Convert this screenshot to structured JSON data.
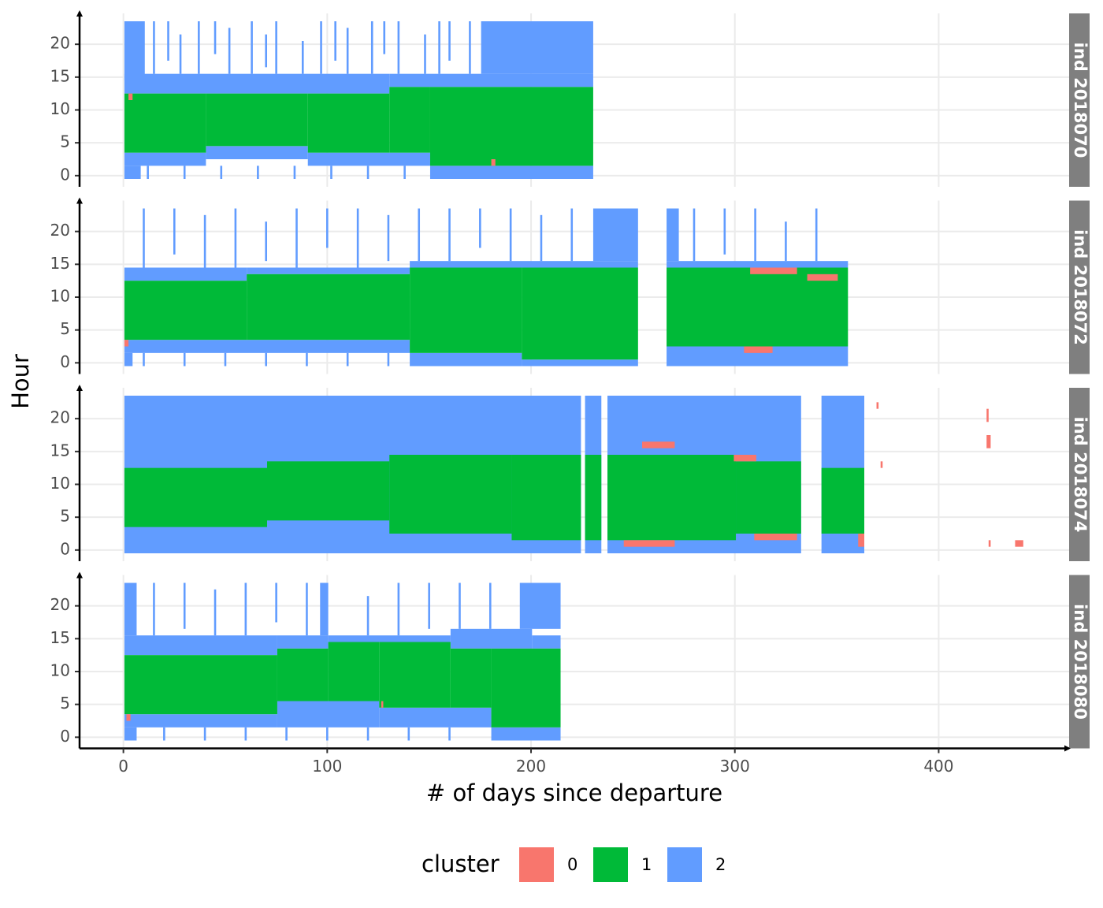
{
  "chart_data": {
    "type": "tile",
    "x_label": "# of days since departure",
    "y_label": "Hour",
    "xlim": [
      -21.5,
      464
    ],
    "xticks": [
      0,
      100,
      200,
      300,
      400
    ],
    "ylim": [
      -1.7,
      24.7
    ],
    "yticks": [
      0,
      5,
      10,
      15,
      20
    ],
    "grid": true,
    "legend": {
      "title": "cluster",
      "position": "bottom"
    },
    "clusters": [
      {
        "name": "0",
        "color": "#F8766D"
      },
      {
        "name": "1",
        "color": "#00BA38"
      },
      {
        "name": "2",
        "color": "#619CFF"
      }
    ],
    "facets": [
      {
        "label": "ind 2018070",
        "tiles": [
          [
            0.5,
            10.5,
            14.5,
            23.5,
            2
          ],
          [
            0.5,
            130.5,
            12.5,
            15.5,
            2
          ],
          [
            130.5,
            230.5,
            13.5,
            15.5,
            2
          ],
          [
            175.5,
            230.5,
            15.5,
            23.5,
            2
          ],
          [
            0.5,
            40.5,
            1.5,
            3.5,
            2
          ],
          [
            40.5,
            90.5,
            2.5,
            4.5,
            2
          ],
          [
            90.5,
            150.5,
            1.5,
            3.5,
            2
          ],
          [
            150.5,
            230.5,
            -0.5,
            1.5,
            2
          ],
          [
            0.5,
            8.5,
            -0.5,
            1.5,
            2
          ],
          [
            14.5,
            15.5,
            15.5,
            23.5,
            2
          ],
          [
            21.5,
            22.5,
            17.5,
            23.5,
            2
          ],
          [
            27.5,
            28.5,
            15.5,
            21.5,
            2
          ],
          [
            36.5,
            37.5,
            15.5,
            23.5,
            2
          ],
          [
            44.5,
            45.5,
            18.5,
            23.5,
            2
          ],
          [
            51.5,
            52.5,
            15.5,
            22.5,
            2
          ],
          [
            62.5,
            63.5,
            15.5,
            23.5,
            2
          ],
          [
            69.5,
            70.5,
            16.5,
            21.5,
            2
          ],
          [
            74.5,
            75.5,
            15.5,
            23.5,
            2
          ],
          [
            87.5,
            88.5,
            15.5,
            20.5,
            2
          ],
          [
            96.5,
            97.5,
            15.5,
            23.5,
            2
          ],
          [
            103.5,
            104.5,
            17.5,
            23.5,
            2
          ],
          [
            109.5,
            110.5,
            15.5,
            22.5,
            2
          ],
          [
            121.5,
            122.5,
            15.5,
            23.5,
            2
          ],
          [
            127.5,
            128.5,
            18.5,
            23.5,
            2
          ],
          [
            134.5,
            135.5,
            15.5,
            23.5,
            2
          ],
          [
            147.5,
            148.5,
            15.5,
            21.5,
            2
          ],
          [
            154.5,
            155.5,
            15.5,
            23.5,
            2
          ],
          [
            159.5,
            160.5,
            17.5,
            23.5,
            2
          ],
          [
            169.5,
            170.5,
            15.5,
            23.5,
            2
          ],
          [
            11.5,
            12.5,
            -0.5,
            1.5,
            2
          ],
          [
            29.5,
            30.5,
            -0.5,
            1.5,
            2
          ],
          [
            47.5,
            48.5,
            -0.5,
            1.5,
            2
          ],
          [
            65.5,
            66.5,
            -0.5,
            1.5,
            2
          ],
          [
            83.5,
            84.5,
            -0.5,
            1.5,
            2
          ],
          [
            101.5,
            102.5,
            -0.5,
            1.5,
            2
          ],
          [
            119.5,
            120.5,
            -0.5,
            1.5,
            2
          ],
          [
            137.5,
            138.5,
            -0.5,
            1.5,
            2
          ],
          [
            0.5,
            40.5,
            3.5,
            12.5,
            1
          ],
          [
            40.5,
            90.5,
            4.5,
            12.5,
            1
          ],
          [
            90.5,
            130.5,
            3.5,
            12.5,
            1
          ],
          [
            130.5,
            150.5,
            3.5,
            13.5,
            1
          ],
          [
            150.5,
            230.5,
            1.5,
            13.5,
            1
          ],
          [
            2.5,
            4.5,
            11.5,
            12.5,
            0
          ],
          [
            180.5,
            182.5,
            1.5,
            2.5,
            0
          ]
        ]
      },
      {
        "label": "ind 2018072",
        "tiles": [
          [
            0.5,
            60.5,
            12.5,
            14.5,
            2
          ],
          [
            60.5,
            140.5,
            13.5,
            14.5,
            2
          ],
          [
            140.5,
            252.5,
            14.5,
            15.5,
            2
          ],
          [
            266.5,
            355.5,
            14.5,
            15.5,
            2
          ],
          [
            230.5,
            252.5,
            15.5,
            23.5,
            2
          ],
          [
            266.5,
            272.5,
            15.5,
            23.5,
            2
          ],
          [
            0.5,
            140.5,
            1.5,
            3.5,
            2
          ],
          [
            140.5,
            195.5,
            -0.5,
            1.5,
            2
          ],
          [
            195.5,
            252.5,
            -0.5,
            0.5,
            2
          ],
          [
            266.5,
            355.5,
            -0.5,
            2.5,
            2
          ],
          [
            0.5,
            4.5,
            -0.5,
            1.5,
            2
          ],
          [
            9.5,
            10.5,
            14.5,
            23.5,
            2
          ],
          [
            24.5,
            25.5,
            16.5,
            23.5,
            2
          ],
          [
            39.5,
            40.5,
            14.5,
            22.5,
            2
          ],
          [
            54.5,
            55.5,
            14.5,
            23.5,
            2
          ],
          [
            69.5,
            70.5,
            15.5,
            21.5,
            2
          ],
          [
            84.5,
            85.5,
            14.5,
            23.5,
            2
          ],
          [
            99.5,
            100.5,
            17.5,
            23.5,
            2
          ],
          [
            114.5,
            115.5,
            14.5,
            23.5,
            2
          ],
          [
            129.5,
            130.5,
            15.5,
            22.5,
            2
          ],
          [
            144.5,
            145.5,
            15.5,
            23.5,
            2
          ],
          [
            159.5,
            160.5,
            15.5,
            23.5,
            2
          ],
          [
            174.5,
            175.5,
            17.5,
            23.5,
            2
          ],
          [
            189.5,
            190.5,
            15.5,
            23.5,
            2
          ],
          [
            204.5,
            205.5,
            15.5,
            22.5,
            2
          ],
          [
            219.5,
            220.5,
            15.5,
            23.5,
            2
          ],
          [
            279.5,
            280.5,
            15.5,
            23.5,
            2
          ],
          [
            294.5,
            295.5,
            16.5,
            23.5,
            2
          ],
          [
            309.5,
            310.5,
            15.5,
            23.5,
            2
          ],
          [
            324.5,
            325.5,
            15.5,
            21.5,
            2
          ],
          [
            339.5,
            340.5,
            15.5,
            23.5,
            2
          ],
          [
            9.5,
            10.5,
            -0.5,
            1.5,
            2
          ],
          [
            29.5,
            30.5,
            -0.5,
            1.5,
            2
          ],
          [
            49.5,
            50.5,
            -0.5,
            1.5,
            2
          ],
          [
            69.5,
            70.5,
            -0.5,
            1.5,
            2
          ],
          [
            89.5,
            90.5,
            -0.5,
            1.5,
            2
          ],
          [
            109.5,
            110.5,
            -0.5,
            1.5,
            2
          ],
          [
            129.5,
            130.5,
            -0.5,
            1.5,
            2
          ],
          [
            0.5,
            60.5,
            3.5,
            12.5,
            1
          ],
          [
            60.5,
            140.5,
            3.5,
            13.5,
            1
          ],
          [
            140.5,
            195.5,
            1.5,
            14.5,
            1
          ],
          [
            195.5,
            252.5,
            0.5,
            14.5,
            1
          ],
          [
            266.5,
            355.5,
            2.5,
            14.5,
            1
          ],
          [
            307.5,
            330.5,
            13.5,
            14.5,
            0
          ],
          [
            335.5,
            350.5,
            12.5,
            13.5,
            0
          ],
          [
            304.5,
            318.5,
            1.5,
            2.5,
            0
          ],
          [
            0.5,
            2.5,
            2.5,
            3.5,
            0
          ]
        ]
      },
      {
        "label": "ind 2018074",
        "tiles": [
          [
            0.5,
            224.5,
            -0.5,
            23.5,
            2
          ],
          [
            226.5,
            234.5,
            -0.5,
            23.5,
            2
          ],
          [
            237.5,
            332.5,
            -0.5,
            23.5,
            2
          ],
          [
            342.5,
            363.5,
            -0.5,
            23.5,
            2
          ],
          [
            0.5,
            70.5,
            3.5,
            12.5,
            1
          ],
          [
            70.5,
            130.5,
            4.5,
            13.5,
            1
          ],
          [
            130.5,
            190.5,
            2.5,
            14.5,
            1
          ],
          [
            190.5,
            224.5,
            1.5,
            14.5,
            1
          ],
          [
            226.5,
            234.5,
            1.5,
            14.5,
            1
          ],
          [
            237.5,
            300.5,
            1.5,
            14.5,
            1
          ],
          [
            300.5,
            332.5,
            2.5,
            13.5,
            1
          ],
          [
            342.5,
            363.5,
            2.5,
            12.5,
            1
          ],
          [
            245.5,
            270.5,
            0.5,
            1.5,
            0
          ],
          [
            309.5,
            330.5,
            1.5,
            2.5,
            0
          ],
          [
            254.5,
            270.5,
            15.5,
            16.5,
            0
          ],
          [
            299.5,
            310.5,
            13.5,
            14.5,
            0
          ],
          [
            360.5,
            363.5,
            0.5,
            2.5,
            0
          ],
          [
            369.5,
            370.5,
            21.5,
            22.5,
            0
          ],
          [
            371.5,
            372.5,
            12.5,
            13.5,
            0
          ],
          [
            423.5,
            425.5,
            15.5,
            17.5,
            0
          ],
          [
            423.5,
            424.5,
            19.5,
            21.5,
            0
          ],
          [
            424.5,
            425.5,
            0.5,
            1.5,
            0
          ],
          [
            437.5,
            441.5,
            0.5,
            1.5,
            0
          ]
        ]
      },
      {
        "label": "ind 2018080",
        "tiles": [
          [
            0.5,
            75.5,
            12.5,
            15.5,
            2
          ],
          [
            75.5,
            100.5,
            13.5,
            15.5,
            2
          ],
          [
            100.5,
            160.5,
            14.5,
            15.5,
            2
          ],
          [
            160.5,
            200.5,
            13.5,
            16.5,
            2
          ],
          [
            200.5,
            214.5,
            13.5,
            15.5,
            2
          ],
          [
            0.5,
            75.5,
            1.5,
            3.5,
            2
          ],
          [
            75.5,
            125.5,
            1.5,
            5.5,
            2
          ],
          [
            125.5,
            180.5,
            1.5,
            4.5,
            2
          ],
          [
            180.5,
            214.5,
            -0.5,
            1.5,
            2
          ],
          [
            0.5,
            6.5,
            -0.5,
            1.5,
            2
          ],
          [
            0.5,
            6.5,
            15.5,
            23.5,
            2
          ],
          [
            14.5,
            15.5,
            15.5,
            23.5,
            2
          ],
          [
            29.5,
            30.5,
            16.5,
            23.5,
            2
          ],
          [
            44.5,
            45.5,
            15.5,
            22.5,
            2
          ],
          [
            59.5,
            60.5,
            15.5,
            23.5,
            2
          ],
          [
            74.5,
            75.5,
            17.5,
            23.5,
            2
          ],
          [
            89.5,
            90.5,
            15.5,
            23.5,
            2
          ],
          [
            96.5,
            100.5,
            15.5,
            23.5,
            2
          ],
          [
            119.5,
            120.5,
            15.5,
            21.5,
            2
          ],
          [
            134.5,
            135.5,
            15.5,
            23.5,
            2
          ],
          [
            149.5,
            150.5,
            16.5,
            23.5,
            2
          ],
          [
            164.5,
            165.5,
            16.5,
            23.5,
            2
          ],
          [
            179.5,
            180.5,
            16.5,
            23.5,
            2
          ],
          [
            194.5,
            214.5,
            16.5,
            23.5,
            2
          ],
          [
            19.5,
            20.5,
            -0.5,
            1.5,
            2
          ],
          [
            39.5,
            40.5,
            -0.5,
            1.5,
            2
          ],
          [
            59.5,
            60.5,
            -0.5,
            1.5,
            2
          ],
          [
            79.5,
            80.5,
            -0.5,
            1.5,
            2
          ],
          [
            99.5,
            100.5,
            -0.5,
            1.5,
            2
          ],
          [
            119.5,
            120.5,
            -0.5,
            1.5,
            2
          ],
          [
            139.5,
            140.5,
            -0.5,
            1.5,
            2
          ],
          [
            159.5,
            160.5,
            -0.5,
            1.5,
            2
          ],
          [
            0.5,
            75.5,
            3.5,
            12.5,
            1
          ],
          [
            75.5,
            100.5,
            5.5,
            13.5,
            1
          ],
          [
            100.5,
            125.5,
            5.5,
            14.5,
            1
          ],
          [
            125.5,
            160.5,
            4.5,
            14.5,
            1
          ],
          [
            160.5,
            180.5,
            4.5,
            13.5,
            1
          ],
          [
            180.5,
            214.5,
            1.5,
            13.5,
            1
          ],
          [
            1.5,
            3.5,
            2.5,
            3.5,
            0
          ],
          [
            126.5,
            127.5,
            4.5,
            5.5,
            0
          ]
        ]
      }
    ]
  }
}
